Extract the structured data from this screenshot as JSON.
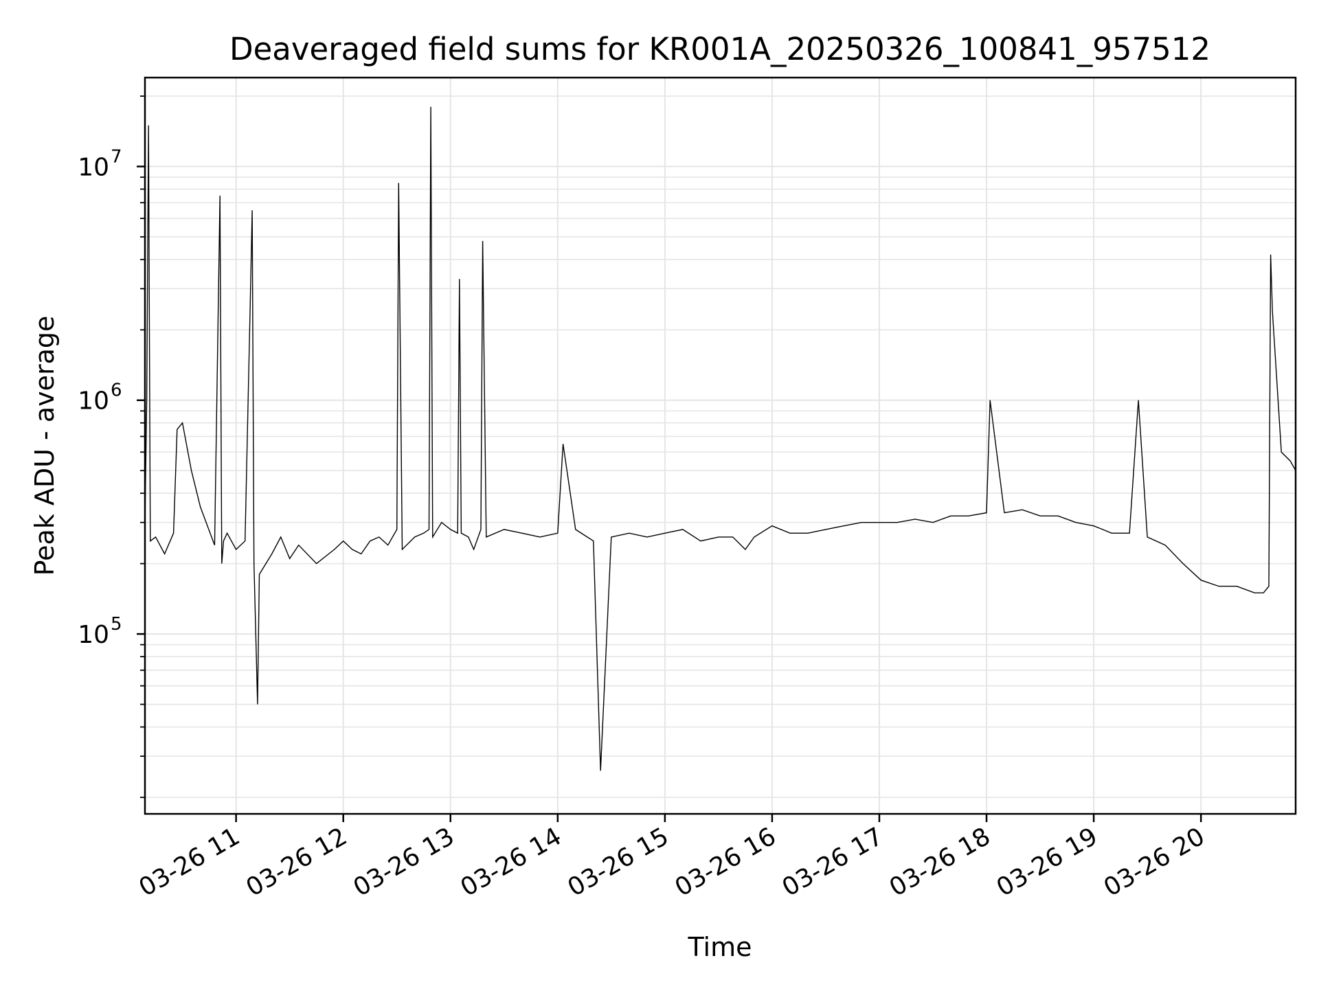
{
  "colors": {
    "series_line": "#000000",
    "grid": "#e5e5e5",
    "axes": "#000000",
    "background": "#ffffff"
  },
  "chart_data": {
    "type": "line",
    "title": "Deaveraged field sums for KR001A_20250326_100841_957512",
    "xlabel": "Time",
    "ylabel": "Peak ADU - average",
    "yscale": "log",
    "grid": true,
    "grid_minor_y": true,
    "legend": "none",
    "xlim": [
      "2025-03-26 10:09",
      "2025-03-26 20:53"
    ],
    "ylim": [
      17000,
      24000000
    ],
    "x_ticks": [
      "2025-03-26 11:00",
      "2025-03-26 12:00",
      "2025-03-26 13:00",
      "2025-03-26 14:00",
      "2025-03-26 15:00",
      "2025-03-26 16:00",
      "2025-03-26 17:00",
      "2025-03-26 18:00",
      "2025-03-26 19:00",
      "2025-03-26 20:00"
    ],
    "x_tick_labels": [
      "03-26 11",
      "03-26 12",
      "03-26 13",
      "03-26 14",
      "03-26 15",
      "03-26 16",
      "03-26 17",
      "03-26 18",
      "03-26 19",
      "03-26 20"
    ],
    "y_ticks": [
      100000,
      1000000,
      10000000
    ],
    "y_tick_labels": [
      {
        "base": "10",
        "exp": "5"
      },
      {
        "base": "10",
        "exp": "6"
      },
      {
        "base": "10",
        "exp": "7"
      }
    ],
    "series": [
      {
        "x": [
          "2025-03-26 10:09",
          "2025-03-26 10:10",
          "2025-03-26 10:11",
          "2025-03-26 10:12",
          "2025-03-26 10:15",
          "2025-03-26 10:20",
          "2025-03-26 10:25",
          "2025-03-26 10:27",
          "2025-03-26 10:30",
          "2025-03-26 10:35",
          "2025-03-26 10:40",
          "2025-03-26 10:48",
          "2025-03-26 10:51",
          "2025-03-26 10:52",
          "2025-03-26 10:53",
          "2025-03-26 10:55",
          "2025-03-26 11:00",
          "2025-03-26 11:05",
          "2025-03-26 11:08",
          "2025-03-26 11:09",
          "2025-03-26 11:10",
          "2025-03-26 11:12",
          "2025-03-26 11:13",
          "2025-03-26 11:20",
          "2025-03-26 11:25",
          "2025-03-26 11:30",
          "2025-03-26 11:35",
          "2025-03-26 11:45",
          "2025-03-26 11:55",
          "2025-03-26 12:00",
          "2025-03-26 12:05",
          "2025-03-26 12:10",
          "2025-03-26 12:15",
          "2025-03-26 12:20",
          "2025-03-26 12:25",
          "2025-03-26 12:30",
          "2025-03-26 12:31",
          "2025-03-26 12:33",
          "2025-03-26 12:40",
          "2025-03-26 12:45",
          "2025-03-26 12:48",
          "2025-03-26 12:49",
          "2025-03-26 12:50",
          "2025-03-26 12:55",
          "2025-03-26 13:00",
          "2025-03-26 13:04",
          "2025-03-26 13:05",
          "2025-03-26 13:06",
          "2025-03-26 13:10",
          "2025-03-26 13:13",
          "2025-03-26 13:17",
          "2025-03-26 13:18",
          "2025-03-26 13:20",
          "2025-03-26 13:30",
          "2025-03-26 13:40",
          "2025-03-26 13:50",
          "2025-03-26 14:00",
          "2025-03-26 14:03",
          "2025-03-26 14:10",
          "2025-03-26 14:20",
          "2025-03-26 14:24",
          "2025-03-26 14:30",
          "2025-03-26 14:40",
          "2025-03-26 14:50",
          "2025-03-26 15:00",
          "2025-03-26 15:10",
          "2025-03-26 15:20",
          "2025-03-26 15:30",
          "2025-03-26 15:38",
          "2025-03-26 15:45",
          "2025-03-26 15:50",
          "2025-03-26 16:00",
          "2025-03-26 16:10",
          "2025-03-26 16:20",
          "2025-03-26 16:30",
          "2025-03-26 16:40",
          "2025-03-26 16:50",
          "2025-03-26 17:00",
          "2025-03-26 17:10",
          "2025-03-26 17:20",
          "2025-03-26 17:30",
          "2025-03-26 17:40",
          "2025-03-26 17:50",
          "2025-03-26 18:00",
          "2025-03-26 18:02",
          "2025-03-26 18:10",
          "2025-03-26 18:20",
          "2025-03-26 18:30",
          "2025-03-26 18:40",
          "2025-03-26 18:50",
          "2025-03-26 19:00",
          "2025-03-26 19:05",
          "2025-03-26 19:10",
          "2025-03-26 19:20",
          "2025-03-26 19:25",
          "2025-03-26 19:30",
          "2025-03-26 19:40",
          "2025-03-26 19:50",
          "2025-03-26 20:00",
          "2025-03-26 20:10",
          "2025-03-26 20:20",
          "2025-03-26 20:30",
          "2025-03-26 20:35",
          "2025-03-26 20:38",
          "2025-03-26 20:39",
          "2025-03-26 20:40",
          "2025-03-26 20:45",
          "2025-03-26 20:50",
          "2025-03-26 20:53"
        ],
        "y": [
          300000,
          1000000,
          15000000,
          250000,
          260000,
          220000,
          270000,
          750000,
          800000,
          500000,
          350000,
          240000,
          7500000,
          200000,
          250000,
          270000,
          230000,
          250000,
          2800000,
          6500000,
          200000,
          50000,
          180000,
          220000,
          260000,
          210000,
          240000,
          200000,
          230000,
          250000,
          230000,
          220000,
          250000,
          260000,
          240000,
          280000,
          8500000,
          230000,
          260000,
          270000,
          280000,
          18000000,
          260000,
          300000,
          280000,
          270000,
          3300000,
          270000,
          260000,
          230000,
          280000,
          4800000,
          260000,
          280000,
          270000,
          260000,
          270000,
          650000,
          280000,
          250000,
          26000,
          260000,
          270000,
          260000,
          270000,
          280000,
          250000,
          260000,
          260000,
          230000,
          260000,
          290000,
          270000,
          270000,
          280000,
          290000,
          300000,
          300000,
          300000,
          310000,
          300000,
          320000,
          320000,
          330000,
          1000000,
          330000,
          340000,
          320000,
          320000,
          300000,
          290000,
          280000,
          270000,
          270000,
          1000000,
          260000,
          240000,
          200000,
          170000,
          160000,
          160000,
          150000,
          150000,
          160000,
          4200000,
          2400000,
          600000,
          550000,
          500000
        ]
      }
    ]
  }
}
